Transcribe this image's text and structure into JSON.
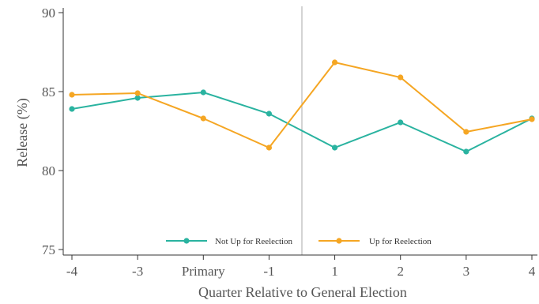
{
  "chart_data": {
    "type": "line",
    "xlabel": "Quarter Relative to General Election",
    "ylabel": "Release (%)",
    "categories": [
      "-4",
      "-3",
      "Primary",
      "-1",
      "1",
      "2",
      "3",
      "4"
    ],
    "ylim": [
      75,
      90
    ],
    "yticks": [
      75,
      80,
      85,
      90
    ],
    "vertical_line_between": [
      "-1",
      "1"
    ],
    "grid": false,
    "legend_position": "bottom-center",
    "series": [
      {
        "name": "Not Up for Reelection",
        "color": "#2ab3a0",
        "values": [
          83.9,
          84.6,
          84.95,
          83.6,
          81.45,
          83.05,
          81.2,
          83.3
        ]
      },
      {
        "name": "Up for Reelection",
        "color": "#f5a623",
        "values": [
          84.8,
          84.9,
          83.3,
          81.45,
          86.85,
          85.9,
          82.45,
          83.25
        ]
      }
    ]
  }
}
